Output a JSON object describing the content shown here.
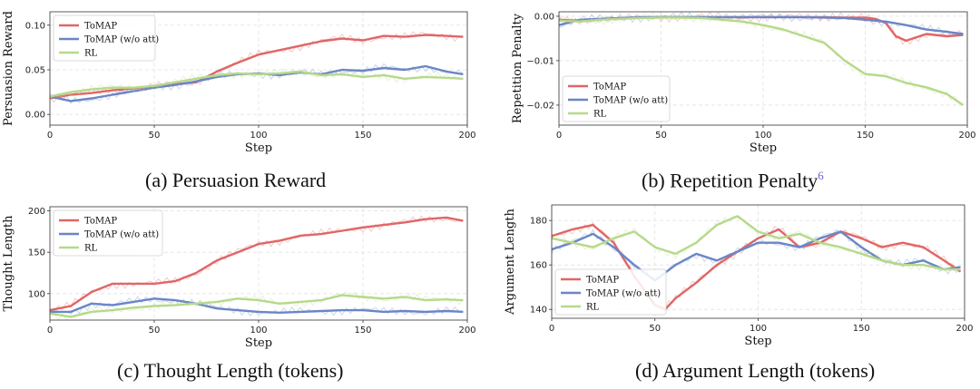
{
  "colors": {
    "tomap": "#e06666",
    "tomap_wo_att": "#6a86c6",
    "rl": "#b7d98a"
  },
  "captions": {
    "a": "(a) Persuasion Reward",
    "b": "(b) Repetition Penalty",
    "b_footnote": "6",
    "c": "(c) Thought Length (tokens)",
    "d": "(d) Argument Length (tokens)"
  },
  "chart_data": [
    {
      "id": "a",
      "type": "line",
      "xlabel": "Step",
      "ylabel": "Persuasion Reward",
      "xlim": [
        0,
        200
      ],
      "ylim": [
        -0.012,
        0.115
      ],
      "xticks": [
        0,
        50,
        100,
        150,
        200
      ],
      "yticks": [
        0.0,
        0.05,
        0.1
      ],
      "ytick_labels": [
        "0.00",
        "0.05",
        "0.10"
      ],
      "grid": true,
      "legend_position": "upper-left",
      "series": [
        {
          "name": "ToMAP",
          "color": "#e06666",
          "x": [
            0,
            10,
            20,
            30,
            40,
            50,
            60,
            70,
            80,
            90,
            100,
            110,
            120,
            130,
            140,
            150,
            160,
            170,
            180,
            190,
            198
          ],
          "y": [
            0.018,
            0.022,
            0.024,
            0.027,
            0.029,
            0.032,
            0.034,
            0.036,
            0.048,
            0.058,
            0.067,
            0.072,
            0.077,
            0.082,
            0.085,
            0.083,
            0.088,
            0.087,
            0.089,
            0.088,
            0.087
          ]
        },
        {
          "name": "ToMAP (w/o att)",
          "color": "#6a86c6",
          "x": [
            0,
            10,
            20,
            30,
            40,
            50,
            60,
            70,
            80,
            90,
            100,
            110,
            120,
            130,
            140,
            150,
            160,
            170,
            180,
            190,
            198
          ],
          "y": [
            0.02,
            0.015,
            0.018,
            0.022,
            0.026,
            0.03,
            0.033,
            0.037,
            0.042,
            0.045,
            0.046,
            0.044,
            0.047,
            0.045,
            0.05,
            0.049,
            0.052,
            0.05,
            0.054,
            0.048,
            0.045
          ]
        },
        {
          "name": "RL",
          "color": "#b7d98a",
          "x": [
            0,
            10,
            20,
            30,
            40,
            50,
            60,
            70,
            80,
            90,
            100,
            110,
            120,
            130,
            140,
            150,
            160,
            170,
            180,
            190,
            198
          ],
          "y": [
            0.02,
            0.025,
            0.028,
            0.03,
            0.03,
            0.032,
            0.036,
            0.04,
            0.044,
            0.046,
            0.045,
            0.046,
            0.048,
            0.044,
            0.045,
            0.042,
            0.044,
            0.04,
            0.042,
            0.041,
            0.04
          ]
        }
      ]
    },
    {
      "id": "b",
      "type": "line",
      "xlabel": "Step",
      "ylabel": "Repetition Penalty",
      "xlim": [
        0,
        200
      ],
      "ylim": [
        -0.0245,
        0.001
      ],
      "xticks": [
        0,
        50,
        100,
        150,
        200
      ],
      "yticks": [
        0.0,
        -0.01,
        -0.02
      ],
      "ytick_labels": [
        "0.00",
        "−0.01",
        "−0.02"
      ],
      "grid": true,
      "legend_position": "lower-left",
      "series": [
        {
          "name": "ToMAP",
          "color": "#e06666",
          "x": [
            0,
            10,
            20,
            30,
            40,
            50,
            60,
            70,
            80,
            90,
            100,
            110,
            120,
            130,
            140,
            150,
            155,
            160,
            165,
            170,
            180,
            190,
            198
          ],
          "y": [
            -0.0008,
            -0.001,
            -0.0007,
            -0.0005,
            -0.0003,
            -0.0002,
            -0.0002,
            -0.0002,
            -0.0002,
            -0.0002,
            -0.0002,
            -0.0002,
            -0.0002,
            -0.0002,
            -0.0003,
            -0.0003,
            -0.0006,
            -0.0015,
            -0.0045,
            -0.0055,
            -0.004,
            -0.0045,
            -0.0042
          ]
        },
        {
          "name": "ToMAP (w/o att)",
          "color": "#6a86c6",
          "x": [
            0,
            10,
            20,
            30,
            40,
            50,
            60,
            70,
            80,
            90,
            100,
            110,
            120,
            130,
            140,
            150,
            160,
            170,
            180,
            190,
            198
          ],
          "y": [
            -0.002,
            -0.0008,
            -0.0006,
            -0.0004,
            -0.0002,
            -0.0002,
            -0.0002,
            -0.0002,
            -0.0002,
            -0.0002,
            -0.0002,
            -0.0002,
            -0.0002,
            -0.0003,
            -0.0004,
            -0.0008,
            -0.0012,
            -0.002,
            -0.003,
            -0.0035,
            -0.004
          ]
        },
        {
          "name": "RL",
          "color": "#b7d98a",
          "x": [
            0,
            10,
            20,
            30,
            40,
            50,
            60,
            70,
            80,
            90,
            100,
            110,
            120,
            130,
            140,
            150,
            160,
            170,
            180,
            190,
            198
          ],
          "y": [
            -0.001,
            -0.0012,
            -0.0008,
            -0.0006,
            -0.0004,
            -0.0003,
            -0.0003,
            -0.0004,
            -0.0008,
            -0.0012,
            -0.002,
            -0.003,
            -0.0045,
            -0.006,
            -0.01,
            -0.013,
            -0.0135,
            -0.015,
            -0.016,
            -0.0175,
            -0.02
          ]
        }
      ]
    },
    {
      "id": "c",
      "type": "line",
      "xlabel": "Step",
      "ylabel": "Thought Length",
      "xlim": [
        0,
        200
      ],
      "ylim": [
        68,
        205
      ],
      "xticks": [
        0,
        50,
        100,
        150,
        200
      ],
      "yticks": [
        100,
        150,
        200
      ],
      "ytick_labels": [
        "100",
        "150",
        "200"
      ],
      "grid": true,
      "legend_position": "upper-left",
      "series": [
        {
          "name": "ToMAP",
          "color": "#e06666",
          "x": [
            0,
            10,
            20,
            30,
            40,
            50,
            60,
            70,
            80,
            90,
            100,
            110,
            120,
            130,
            140,
            150,
            160,
            170,
            180,
            190,
            198
          ],
          "y": [
            80,
            85,
            102,
            112,
            112,
            112,
            115,
            125,
            140,
            150,
            160,
            164,
            170,
            172,
            176,
            180,
            183,
            186,
            190,
            192,
            188
          ]
        },
        {
          "name": "ToMAP (w/o att)",
          "color": "#6a86c6",
          "x": [
            0,
            10,
            20,
            30,
            40,
            50,
            60,
            70,
            80,
            90,
            100,
            110,
            120,
            130,
            140,
            150,
            160,
            170,
            180,
            190,
            198
          ],
          "y": [
            78,
            78,
            88,
            86,
            90,
            94,
            92,
            88,
            82,
            80,
            78,
            77,
            78,
            79,
            80,
            80,
            78,
            79,
            78,
            79,
            78
          ]
        },
        {
          "name": "RL",
          "color": "#b7d98a",
          "x": [
            0,
            10,
            20,
            30,
            40,
            50,
            60,
            70,
            80,
            90,
            100,
            110,
            120,
            130,
            140,
            150,
            160,
            170,
            180,
            190,
            198
          ],
          "y": [
            76,
            72,
            78,
            80,
            83,
            85,
            86,
            88,
            90,
            94,
            92,
            88,
            90,
            92,
            98,
            96,
            94,
            96,
            92,
            93,
            92
          ]
        }
      ]
    },
    {
      "id": "d",
      "type": "line",
      "xlabel": "Step",
      "ylabel": "Argument Length",
      "xlim": [
        0,
        200
      ],
      "ylim": [
        136,
        187
      ],
      "xticks": [
        0,
        50,
        100,
        150,
        200
      ],
      "yticks": [
        140,
        160,
        180
      ],
      "ytick_labels": [
        "140",
        "160",
        "180"
      ],
      "grid": true,
      "legend_position": "lower-left",
      "series": [
        {
          "name": "ToMAP",
          "color": "#e06666",
          "x": [
            0,
            10,
            20,
            30,
            40,
            50,
            55,
            60,
            70,
            80,
            90,
            100,
            110,
            120,
            130,
            140,
            150,
            160,
            170,
            180,
            190,
            198
          ],
          "y": [
            173,
            176,
            178,
            170,
            155,
            142,
            140,
            145,
            152,
            160,
            166,
            172,
            176,
            168,
            170,
            175,
            172,
            168,
            170,
            168,
            162,
            157
          ]
        },
        {
          "name": "ToMAP (w/o att)",
          "color": "#6a86c6",
          "x": [
            0,
            10,
            20,
            30,
            40,
            50,
            60,
            70,
            80,
            90,
            100,
            110,
            120,
            130,
            140,
            150,
            160,
            170,
            180,
            190,
            198
          ],
          "y": [
            167,
            170,
            174,
            168,
            160,
            153,
            160,
            165,
            162,
            166,
            170,
            170,
            168,
            172,
            175,
            168,
            162,
            160,
            162,
            158,
            159
          ]
        },
        {
          "name": "RL",
          "color": "#b7d98a",
          "x": [
            0,
            10,
            20,
            30,
            40,
            50,
            60,
            70,
            80,
            90,
            100,
            110,
            120,
            130,
            140,
            150,
            160,
            170,
            180,
            190,
            198
          ],
          "y": [
            172,
            170,
            168,
            172,
            175,
            168,
            165,
            170,
            178,
            182,
            175,
            172,
            174,
            170,
            168,
            165,
            162,
            160,
            160,
            158,
            158
          ]
        }
      ]
    }
  ]
}
